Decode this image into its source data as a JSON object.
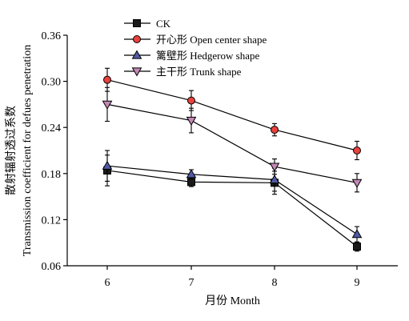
{
  "chart_data": {
    "type": "line",
    "title": "",
    "xlabel": "月份 Month",
    "ylabel": [
      "散射辐射透过系数",
      "Transmission coefficient for defues penetration"
    ],
    "categories": [
      6,
      7,
      8,
      9
    ],
    "ylim": [
      0.06,
      0.36
    ],
    "yticks": [
      "0.06",
      "0.12",
      "0.18",
      "0.24",
      "0.30",
      "0.36"
    ],
    "grid": false,
    "legend_position": "top-left",
    "series": [
      {
        "name": "CK",
        "marker": "square",
        "fill": "#1a1a1a",
        "values": [
          0.184,
          0.169,
          0.168,
          0.085
        ],
        "errors": [
          0.02,
          0.006,
          0.015,
          0.006
        ]
      },
      {
        "name": "开心形 Open center shape",
        "marker": "circle",
        "fill": "#e8413e",
        "values": [
          0.302,
          0.275,
          0.237,
          0.21
        ],
        "errors": [
          0.015,
          0.013,
          0.008,
          0.012
        ]
      },
      {
        "name": "篱壁形 Hedgerow shape",
        "marker": "triangle-up",
        "fill": "#4f5aa6",
        "values": [
          0.19,
          0.179,
          0.172,
          0.101
        ],
        "errors": [
          0.02,
          0.006,
          0.015,
          0.01
        ]
      },
      {
        "name": "主干形 Trunk shape",
        "marker": "triangle-down",
        "fill": "#c487b5",
        "values": [
          0.27,
          0.249,
          0.189,
          0.168
        ],
        "errors": [
          0.022,
          0.016,
          0.01,
          0.012
        ]
      }
    ]
  }
}
